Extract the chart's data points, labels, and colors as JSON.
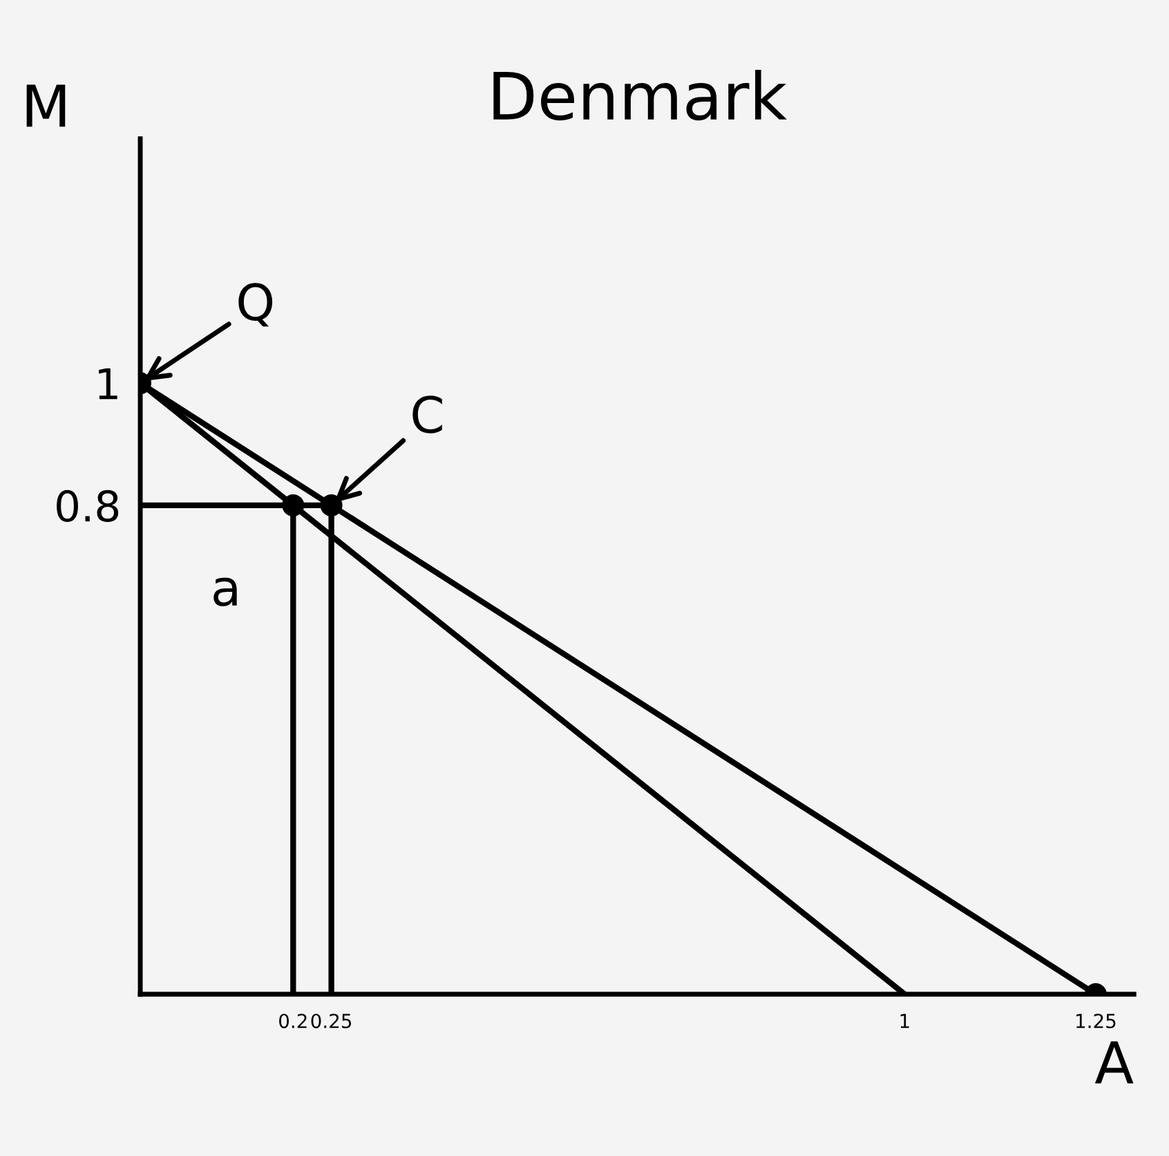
{
  "chart_data": {
    "type": "line",
    "title": "Denmark",
    "xlabel": "A",
    "ylabel": "M",
    "xlim": [
      0,
      1.3
    ],
    "ylim": [
      0,
      1.4
    ],
    "xticks": [
      0.2,
      0.25,
      1,
      1.25
    ],
    "yticks": [
      0.8,
      1
    ],
    "grid": false,
    "legend": false,
    "marker": "none",
    "line_style": "solid",
    "series": [
      {
        "color": "#000000",
        "x": [
          0,
          1
        ],
        "values": [
          1,
          0
        ]
      },
      {
        "color": "#000000",
        "x": [
          0,
          1.25
        ],
        "values": [
          1,
          0
        ]
      },
      {
        "color": "#000000",
        "x": [
          0,
          0.25
        ],
        "values": [
          0.8,
          0.8
        ]
      },
      {
        "color": "#000000",
        "x": [
          0.2,
          0.2
        ],
        "values": [
          0,
          0.8
        ]
      },
      {
        "color": "#000000",
        "x": [
          0.25,
          0.25
        ],
        "values": [
          0,
          0.8
        ]
      },
      {
        "type": "scatter",
        "marker": "circle",
        "color": "#000000",
        "x": [
          0,
          0.2,
          0.25,
          1.25
        ],
        "values": [
          1,
          0.8,
          0.8,
          0
        ]
      }
    ],
    "annotations": [
      {
        "text": "Q",
        "x": 0,
        "y": 1
      },
      {
        "text": "C",
        "x": 0.25,
        "y": 0.8
      },
      {
        "text": "a",
        "x": 0.2,
        "y": 0.8
      }
    ]
  }
}
